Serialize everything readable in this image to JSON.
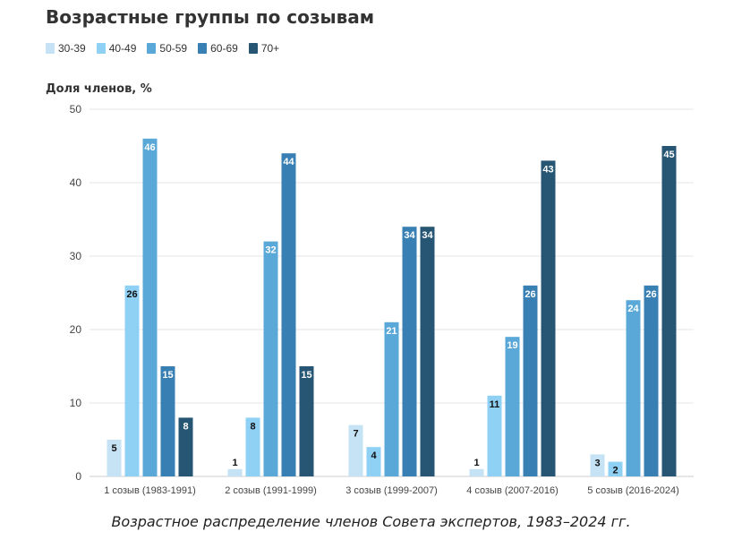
{
  "chart_data": {
    "type": "bar",
    "title": "Возрастные группы по созывам",
    "ylabel": "Доля членов, %",
    "xlabel": "",
    "ylim": [
      0,
      50
    ],
    "yticks": [
      0,
      10,
      20,
      30,
      40,
      50
    ],
    "grid": true,
    "legend_position": "top-left",
    "categories": [
      "1 созыв (1983-1991)",
      "2 созыв (1991-1999)",
      "3 созыв (1999-2007)",
      "4 созыв (2007-2016)",
      "5 созыв (2016-2024)"
    ],
    "series": [
      {
        "name": "30-39",
        "color": "#c6e2f5",
        "values": [
          5,
          1,
          7,
          1,
          3
        ]
      },
      {
        "name": "40-49",
        "color": "#8fd0f5",
        "values": [
          26,
          8,
          4,
          11,
          2
        ]
      },
      {
        "name": "50-59",
        "color": "#5aa8d8",
        "values": [
          46,
          32,
          21,
          19,
          24
        ]
      },
      {
        "name": "60-69",
        "color": "#3880b3",
        "values": [
          15,
          44,
          34,
          26,
          26
        ]
      },
      {
        "name": "70+",
        "color": "#275674",
        "values": [
          8,
          15,
          34,
          43,
          45
        ]
      }
    ]
  },
  "caption": "Возрастное распределение членов Совета экспертов, 1983–2024 гг."
}
